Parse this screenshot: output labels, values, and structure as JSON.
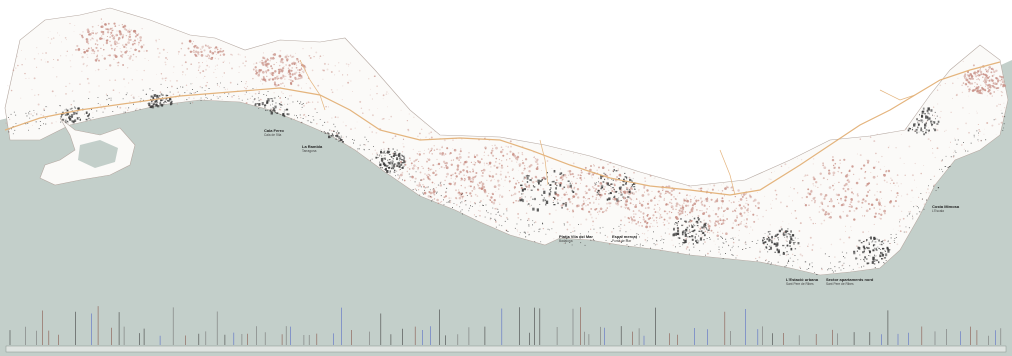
{
  "map": {
    "colors": {
      "sea": "#c3cfca",
      "land": "#fbfaf8",
      "terrain": "#c58a80",
      "urban": "#3a3a3a",
      "roads": "#e4b47d"
    },
    "labels": [
      {
        "id": "cala-ferro",
        "title": "Cala Ferro",
        "sub": "Cala de l'Illa"
      },
      {
        "id": "la-rambla",
        "title": "La Rambla",
        "sub": "Tarragona"
      },
      {
        "id": "platja-vila",
        "title": "Platja Vila del Mar",
        "sub": "Badalona"
      },
      {
        "id": "espai-mercat",
        "title": "Espai mercat",
        "sub": "Punta de Mar"
      },
      {
        "id": "l-estacio",
        "title": "L'Estació urbana",
        "sub": "Sant Pere de Ribes"
      },
      {
        "id": "sector-apart",
        "title": "Sector apartaments nord",
        "sub": "Sant Pere de Ribes"
      },
      {
        "id": "costa-mimosa",
        "title": "Costa Mimosa",
        "sub": "L'Escala"
      }
    ]
  }
}
